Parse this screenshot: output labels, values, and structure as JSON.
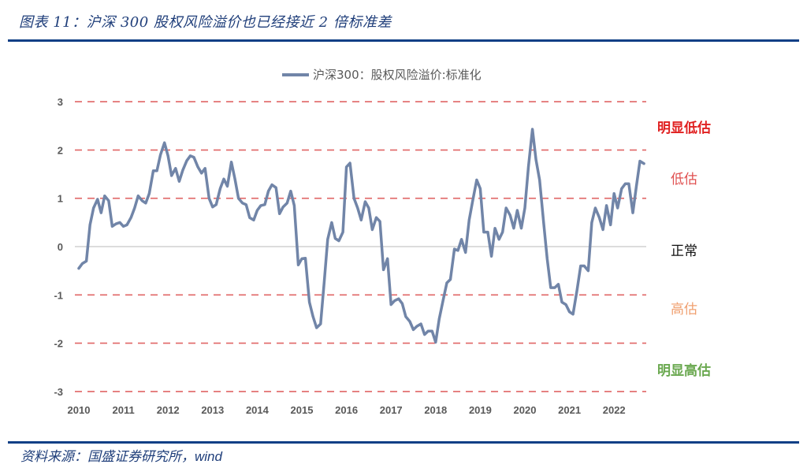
{
  "figure": {
    "title": "图表 11：沪深 300 股权风险溢价也已经接近 2 倍标准差",
    "source_prefix": "资料来源：国盛证券研究所，",
    "source_suffix": "wind"
  },
  "colors": {
    "line": "#7185a8",
    "threshold": "#e06666",
    "zero_line": "#d0d0d0",
    "rule": "#0f3f86",
    "strong_under": "#e02020",
    "under": "#e05050",
    "normal": "#111111",
    "over": "#f0a070",
    "strong_over": "#6aa84f"
  },
  "zones": {
    "strong_undervalued": "明显低估",
    "undervalued": "低估",
    "normal": "正常",
    "overvalued": "高估",
    "strong_overvalued": "明显高估"
  },
  "chart_data": {
    "type": "line",
    "title": "",
    "legend": [
      "沪深300：股权风险溢价:标准化"
    ],
    "legend_position": "top",
    "xlabel": "",
    "ylabel": "",
    "ylim": [
      -3,
      3
    ],
    "yticks": [
      3,
      2,
      1,
      0,
      -1,
      -2,
      -3
    ],
    "xticks": [
      "2010",
      "2011",
      "2012",
      "2013",
      "2014",
      "2015",
      "2016",
      "2017",
      "2018",
      "2019",
      "2020",
      "2021",
      "2022"
    ],
    "xlim": [
      2010,
      2022.75
    ],
    "grid": false,
    "reference_lines": [
      {
        "y": 3,
        "style": "dashed",
        "color": "#e06666"
      },
      {
        "y": 2,
        "style": "dashed",
        "color": "#e06666"
      },
      {
        "y": 1,
        "style": "dashed",
        "color": "#e06666"
      },
      {
        "y": 0,
        "style": "solid",
        "color": "#d0d0d0"
      },
      {
        "y": -1,
        "style": "dashed",
        "color": "#e06666"
      },
      {
        "y": -2,
        "style": "dashed",
        "color": "#e06666"
      },
      {
        "y": -3,
        "style": "dashed",
        "color": "#e06666"
      }
    ],
    "annotations": [
      {
        "text": "明显低估",
        "y": 2.5
      },
      {
        "text": "低估",
        "y": 1.4
      },
      {
        "text": "正常",
        "y": -0.1
      },
      {
        "text": "高估",
        "y": -1.3
      },
      {
        "text": "明显高估",
        "y": -2.55
      }
    ],
    "series": [
      {
        "name": "沪深300：股权风险溢价:标准化",
        "x": [
          2010.0,
          2010.08,
          2010.17,
          2010.25,
          2010.33,
          2010.42,
          2010.5,
          2010.58,
          2010.67,
          2010.75,
          2010.83,
          2010.92,
          2011.0,
          2011.08,
          2011.17,
          2011.25,
          2011.33,
          2011.42,
          2011.5,
          2011.58,
          2011.67,
          2011.75,
          2011.83,
          2011.92,
          2012.0,
          2012.08,
          2012.17,
          2012.25,
          2012.33,
          2012.42,
          2012.5,
          2012.58,
          2012.67,
          2012.75,
          2012.83,
          2012.92,
          2013.0,
          2013.08,
          2013.17,
          2013.25,
          2013.33,
          2013.42,
          2013.5,
          2013.58,
          2013.67,
          2013.75,
          2013.83,
          2013.92,
          2014.0,
          2014.08,
          2014.17,
          2014.25,
          2014.33,
          2014.42,
          2014.5,
          2014.58,
          2014.67,
          2014.75,
          2014.83,
          2014.92,
          2015.0,
          2015.08,
          2015.17,
          2015.25,
          2015.33,
          2015.42,
          2015.5,
          2015.58,
          2015.67,
          2015.75,
          2015.83,
          2015.92,
          2016.0,
          2016.08,
          2016.17,
          2016.25,
          2016.33,
          2016.42,
          2016.5,
          2016.58,
          2016.67,
          2016.75,
          2016.83,
          2016.92,
          2017.0,
          2017.08,
          2017.17,
          2017.25,
          2017.33,
          2017.42,
          2017.5,
          2017.58,
          2017.67,
          2017.75,
          2017.83,
          2017.92,
          2018.0,
          2018.08,
          2018.17,
          2018.25,
          2018.33,
          2018.42,
          2018.5,
          2018.58,
          2018.67,
          2018.75,
          2018.83,
          2018.92,
          2019.0,
          2019.08,
          2019.17,
          2019.25,
          2019.33,
          2019.42,
          2019.5,
          2019.58,
          2019.67,
          2019.75,
          2019.83,
          2019.92,
          2020.0,
          2020.08,
          2020.17,
          2020.25,
          2020.33,
          2020.42,
          2020.5,
          2020.58,
          2020.67,
          2020.75,
          2020.83,
          2020.92,
          2021.0,
          2021.08,
          2021.17,
          2021.25,
          2021.33,
          2021.42,
          2021.5,
          2021.58,
          2021.67,
          2021.75,
          2021.83,
          2021.92,
          2022.0,
          2022.08,
          2022.17,
          2022.25,
          2022.33,
          2022.42,
          2022.5,
          2022.58,
          2022.67
        ],
        "values": [
          -0.45,
          -0.35,
          -0.3,
          0.45,
          0.8,
          0.98,
          0.7,
          1.05,
          0.95,
          0.42,
          0.47,
          0.5,
          0.42,
          0.45,
          0.6,
          0.8,
          1.05,
          0.95,
          0.9,
          1.1,
          1.57,
          1.57,
          1.9,
          2.15,
          1.88,
          1.47,
          1.62,
          1.35,
          1.58,
          1.78,
          1.88,
          1.85,
          1.65,
          1.52,
          1.62,
          1.0,
          0.82,
          0.87,
          1.2,
          1.4,
          1.25,
          1.75,
          1.4,
          1.0,
          0.9,
          0.87,
          0.6,
          0.55,
          0.75,
          0.85,
          0.87,
          1.15,
          1.28,
          1.22,
          0.68,
          0.82,
          0.9,
          1.15,
          0.85,
          -0.38,
          -0.25,
          -0.24,
          -1.15,
          -1.45,
          -1.68,
          -1.6,
          -0.75,
          0.15,
          0.5,
          0.17,
          0.12,
          0.3,
          1.65,
          1.73,
          1.0,
          0.8,
          0.55,
          0.93,
          0.8,
          0.35,
          0.6,
          0.52,
          -0.48,
          -0.25,
          -1.2,
          -1.12,
          -1.08,
          -1.18,
          -1.45,
          -1.55,
          -1.72,
          -1.65,
          -1.6,
          -1.82,
          -1.75,
          -1.75,
          -1.98,
          -1.5,
          -1.1,
          -0.75,
          -0.68,
          -0.05,
          -0.08,
          0.15,
          -0.12,
          0.55,
          0.95,
          1.38,
          1.2,
          0.3,
          0.3,
          -0.2,
          0.38,
          0.15,
          0.3,
          0.8,
          0.65,
          0.38,
          0.75,
          0.38,
          0.8,
          1.65,
          2.43,
          1.8,
          1.38,
          0.5,
          -0.25,
          -0.85,
          -0.85,
          -0.78,
          -1.15,
          -1.2,
          -1.35,
          -1.4,
          -0.9,
          -0.4,
          -0.4,
          -0.5,
          0.5,
          0.8,
          0.6,
          0.35,
          0.85,
          0.45,
          1.1,
          0.8,
          1.2,
          1.3,
          1.3,
          0.7,
          1.25,
          1.77,
          1.72
        ]
      }
    ]
  }
}
